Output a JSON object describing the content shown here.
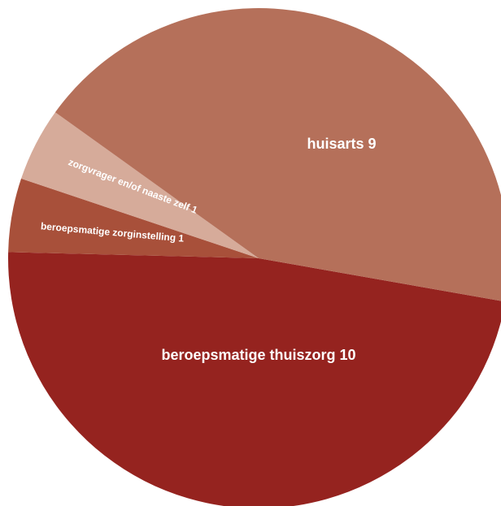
{
  "chart_data": {
    "type": "pie",
    "categories": [
      "beroepsmatige thuiszorg",
      "beroepsmatige zorginstelling",
      "zorgvrager en/of naaste zelf",
      "huisarts"
    ],
    "values": [
      10,
      1,
      1,
      9
    ],
    "colors": [
      "#95231f",
      "#a8503a",
      "#d6ab9a",
      "#b5705a"
    ]
  }
}
